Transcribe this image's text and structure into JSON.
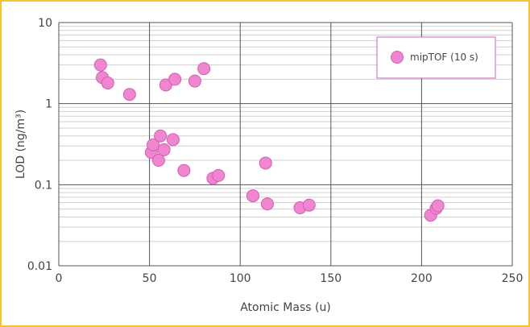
{
  "colors": {
    "frame": "#f4c430",
    "marker_fill": "#ef86cf",
    "marker_stroke": "#d65bb3",
    "legend_border": "#cc66bb",
    "major_grid": "#555555",
    "minor_grid": "#cfcfcf"
  },
  "chart_data": {
    "type": "scatter",
    "title": "",
    "xlabel": "Atomic Mass (u)",
    "ylabel": "LOD (ng/m³)",
    "xlim": [
      0,
      250
    ],
    "ylim": [
      0.01,
      10
    ],
    "yscale": "log",
    "grid": true,
    "legend_position": "top-right",
    "x_ticks": [
      0,
      50,
      100,
      150,
      200,
      250
    ],
    "x_tick_labels": [
      "0",
      "50",
      "100",
      "150",
      "200",
      "250"
    ],
    "y_ticks": [
      0.01,
      0.1,
      1,
      10
    ],
    "y_tick_labels": [
      "0.01",
      "0.1",
      "1",
      "10"
    ],
    "series": [
      {
        "name": "mipTOF (10 s)",
        "points": [
          {
            "x": 23,
            "y": 3.0
          },
          {
            "x": 24,
            "y": 2.1
          },
          {
            "x": 27,
            "y": 1.8
          },
          {
            "x": 39,
            "y": 1.3
          },
          {
            "x": 51,
            "y": 0.25
          },
          {
            "x": 52,
            "y": 0.31
          },
          {
            "x": 55,
            "y": 0.2
          },
          {
            "x": 56,
            "y": 0.4
          },
          {
            "x": 58,
            "y": 0.27
          },
          {
            "x": 59,
            "y": 1.7
          },
          {
            "x": 63,
            "y": 0.36
          },
          {
            "x": 64,
            "y": 2.0
          },
          {
            "x": 69,
            "y": 0.15
          },
          {
            "x": 75,
            "y": 1.9
          },
          {
            "x": 80,
            "y": 2.7
          },
          {
            "x": 85,
            "y": 0.12
          },
          {
            "x": 88,
            "y": 0.13
          },
          {
            "x": 107,
            "y": 0.073
          },
          {
            "x": 114,
            "y": 0.185
          },
          {
            "x": 115,
            "y": 0.058
          },
          {
            "x": 133,
            "y": 0.052
          },
          {
            "x": 138,
            "y": 0.056
          },
          {
            "x": 205,
            "y": 0.042
          },
          {
            "x": 208,
            "y": 0.051
          },
          {
            "x": 209,
            "y": 0.055
          }
        ]
      }
    ]
  }
}
